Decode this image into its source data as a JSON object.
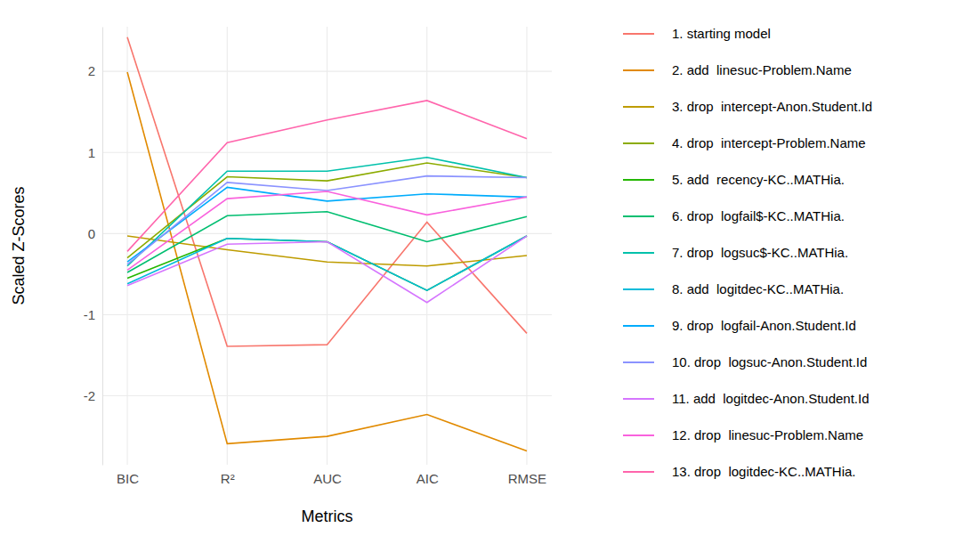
{
  "chart_data": {
    "type": "line",
    "x_label": "Metrics",
    "y_label": "Scaled Z-Scores",
    "categories": [
      "BIC",
      "R²",
      "AUC",
      "AIC",
      "RMSE"
    ],
    "ylim": [
      -2.85,
      2.55
    ],
    "yticks": [
      -2,
      -1,
      0,
      1,
      2
    ],
    "grid": true,
    "legend": "right",
    "series": [
      {
        "name": "1. starting model",
        "color": "#F8766D",
        "values": [
          2.42,
          -1.39,
          -1.37,
          0.14,
          -1.23
        ]
      },
      {
        "name": "2. add  linesuc-Problem.Name",
        "color": "#E18A00",
        "values": [
          1.99,
          -2.59,
          -2.5,
          -2.23,
          -2.68
        ]
      },
      {
        "name": "3. drop  intercept-Anon.Student.Id",
        "color": "#BE9C00",
        "values": [
          -0.03,
          -0.2,
          -0.35,
          -0.4,
          -0.27
        ]
      },
      {
        "name": "4. drop  intercept-Problem.Name",
        "color": "#8CAB00",
        "values": [
          -0.3,
          0.7,
          0.65,
          0.87,
          0.69
        ]
      },
      {
        "name": "5. add  recency-KC..MATHia.",
        "color": "#24B700",
        "values": [
          -0.55,
          -0.06,
          -0.1,
          -0.7,
          -0.03
        ]
      },
      {
        "name": "6. drop  logfail$-KC..MATHia.",
        "color": "#00BE70",
        "values": [
          -0.48,
          0.22,
          0.27,
          -0.1,
          0.21
        ]
      },
      {
        "name": "7. drop  logsuc$-KC..MATHia.",
        "color": "#00C1AB",
        "values": [
          -0.4,
          0.77,
          0.77,
          0.94,
          0.69
        ]
      },
      {
        "name": "8. add  logitdec-KC..MATHia.",
        "color": "#00BBDA",
        "values": [
          -0.62,
          -0.06,
          -0.1,
          -0.7,
          -0.03
        ]
      },
      {
        "name": "9. drop  logfail-Anon.Student.Id",
        "color": "#00ACFC",
        "values": [
          -0.35,
          0.57,
          0.4,
          0.49,
          0.45
        ]
      },
      {
        "name": "10. drop  logsuc-Anon.Student.Id",
        "color": "#8B93FF",
        "values": [
          -0.38,
          0.63,
          0.53,
          0.71,
          0.69
        ]
      },
      {
        "name": "11. add  logitdec-Anon.Student.Id",
        "color": "#D575FE",
        "values": [
          -0.64,
          -0.13,
          -0.1,
          -0.85,
          -0.03
        ]
      },
      {
        "name": "12. drop  linesuc-Problem.Name",
        "color": "#F962DD",
        "values": [
          -0.45,
          0.43,
          0.52,
          0.23,
          0.45
        ]
      },
      {
        "name": "13. drop  logitdec-KC..MATHia.",
        "color": "#FF65AC",
        "values": [
          -0.22,
          1.12,
          1.4,
          1.64,
          1.17
        ]
      }
    ]
  }
}
